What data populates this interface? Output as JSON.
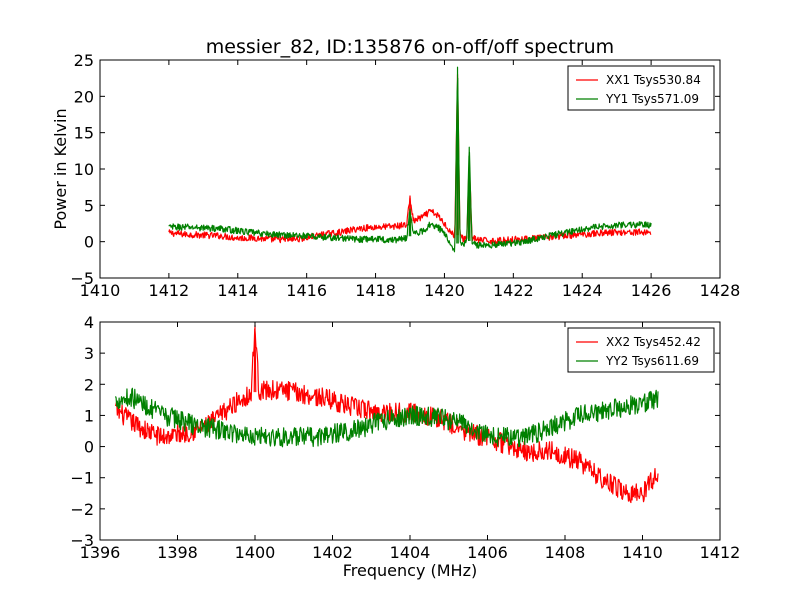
{
  "chart_data": [
    {
      "type": "line",
      "title": "messier_82, ID:135876 on-off/off spectrum",
      "xlabel": "",
      "ylabel": "Power in Kelvin",
      "xlim": [
        1410,
        1428
      ],
      "ylim": [
        -5,
        25
      ],
      "xticks": [
        1410,
        1412,
        1414,
        1416,
        1418,
        1420,
        1422,
        1424,
        1426,
        1428
      ],
      "xtick_labels": [
        "1410",
        "1412",
        "1414",
        "1416",
        "1418",
        "1420",
        "1422",
        "1424",
        "1426",
        "1428"
      ],
      "yticks": [
        -5,
        0,
        5,
        10,
        15,
        20,
        25
      ],
      "ytick_labels": [
        "−5",
        "0",
        "5",
        "10",
        "15",
        "20",
        "25"
      ],
      "grid": false,
      "legend_position": "upper-right",
      "series": [
        {
          "name": "XX1 Tsys530.84",
          "color": "#ff0000",
          "x": [
            1412,
            1412.5,
            1413,
            1413.5,
            1414,
            1414.5,
            1415,
            1415.5,
            1416,
            1416.5,
            1417,
            1417.5,
            1418,
            1418.5,
            1418.9,
            1419.0,
            1419.1,
            1419.4,
            1419.6,
            1419.8,
            1420.0,
            1420.2,
            1420.3,
            1420.38,
            1420.45,
            1420.55,
            1420.65,
            1420.72,
            1420.8,
            1421.0,
            1421.5,
            1422,
            1422.5,
            1423,
            1423.5,
            1424,
            1424.5,
            1425,
            1425.5,
            1426
          ],
          "y": [
            1.2,
            1.0,
            0.9,
            0.8,
            0.5,
            0.5,
            0.3,
            0.3,
            0.5,
            1.0,
            1.3,
            1.8,
            2.0,
            2.1,
            2.3,
            6.0,
            2.8,
            3.5,
            4.2,
            3.6,
            2.5,
            1.2,
            0.8,
            23.0,
            1.0,
            0.3,
            0.6,
            11.5,
            0.5,
            0.2,
            0.1,
            0.3,
            0.4,
            0.6,
            0.8,
            1.0,
            1.2,
            1.3,
            1.3,
            1.3
          ]
        },
        {
          "name": "YY1 Tsys571.09",
          "color": "#008000",
          "x": [
            1412,
            1412.5,
            1413,
            1413.5,
            1414,
            1414.5,
            1415,
            1415.5,
            1416,
            1416.5,
            1417,
            1417.5,
            1418,
            1418.5,
            1418.9,
            1419.0,
            1419.1,
            1419.4,
            1419.6,
            1419.8,
            1420.0,
            1420.2,
            1420.3,
            1420.38,
            1420.45,
            1420.55,
            1420.65,
            1420.72,
            1420.8,
            1421.0,
            1421.5,
            1422,
            1422.5,
            1423,
            1423.5,
            1424,
            1424.5,
            1425,
            1425.5,
            1426
          ],
          "y": [
            2.0,
            2.0,
            1.9,
            1.8,
            1.5,
            1.2,
            1.0,
            0.9,
            0.8,
            0.6,
            0.5,
            0.3,
            0.4,
            0.2,
            0.5,
            4.5,
            1.0,
            1.5,
            2.5,
            2.0,
            1.2,
            -0.5,
            -1.0,
            24.0,
            0.5,
            -0.8,
            0.5,
            13.0,
            -0.3,
            -0.5,
            -0.4,
            -0.2,
            0.2,
            0.8,
            1.2,
            1.8,
            2.0,
            2.3,
            2.3,
            2.3
          ]
        }
      ]
    },
    {
      "type": "line",
      "title": "",
      "xlabel": "Frequency (MHz)",
      "ylabel": "",
      "xlim": [
        1396,
        1412
      ],
      "ylim": [
        -3,
        4
      ],
      "xticks": [
        1396,
        1398,
        1400,
        1402,
        1404,
        1406,
        1408,
        1410,
        1412
      ],
      "xtick_labels": [
        "1396",
        "1398",
        "1400",
        "1402",
        "1404",
        "1406",
        "1408",
        "1410",
        "1412"
      ],
      "yticks": [
        -3,
        -2,
        -1,
        0,
        1,
        2,
        3,
        4
      ],
      "ytick_labels": [
        "−3",
        "−2",
        "−1",
        "0",
        "1",
        "2",
        "3",
        "4"
      ],
      "grid": false,
      "legend_position": "upper-right",
      "series": [
        {
          "name": "XX2 Tsys452.42",
          "color": "#ff0000",
          "x": [
            1396.4,
            1396.8,
            1397.2,
            1397.6,
            1398.0,
            1398.4,
            1398.8,
            1399.2,
            1399.6,
            1399.9,
            1400.0,
            1400.1,
            1400.4,
            1400.8,
            1401.2,
            1401.6,
            1402.0,
            1402.4,
            1402.8,
            1403.2,
            1403.6,
            1404.0,
            1404.4,
            1404.8,
            1405.2,
            1405.6,
            1406.0,
            1406.4,
            1406.8,
            1407.2,
            1407.6,
            1408.0,
            1408.4,
            1408.8,
            1409.2,
            1409.6,
            1410.0,
            1410.4
          ],
          "y": [
            1.2,
            0.8,
            0.5,
            0.3,
            0.4,
            0.5,
            0.7,
            1.1,
            1.5,
            1.7,
            3.9,
            1.8,
            1.8,
            1.8,
            1.7,
            1.6,
            1.5,
            1.3,
            1.2,
            1.1,
            1.1,
            1.1,
            1.0,
            0.9,
            0.6,
            0.4,
            0.3,
            0.1,
            -0.1,
            -0.2,
            -0.1,
            -0.3,
            -0.5,
            -0.9,
            -1.2,
            -1.5,
            -1.5,
            -0.8
          ]
        },
        {
          "name": "YY2 Tsys611.69",
          "color": "#008000",
          "x": [
            1396.4,
            1396.8,
            1397.2,
            1397.6,
            1398.0,
            1398.4,
            1398.8,
            1399.2,
            1399.6,
            1399.9,
            1400.0,
            1400.1,
            1400.4,
            1400.8,
            1401.2,
            1401.6,
            1402.0,
            1402.4,
            1402.8,
            1403.2,
            1403.6,
            1404.0,
            1404.4,
            1404.8,
            1405.2,
            1405.6,
            1406.0,
            1406.4,
            1406.8,
            1407.2,
            1407.6,
            1408.0,
            1408.4,
            1408.8,
            1409.2,
            1409.6,
            1410.0,
            1410.4
          ],
          "y": [
            1.5,
            1.6,
            1.3,
            1.0,
            0.9,
            0.7,
            0.6,
            0.5,
            0.4,
            0.4,
            0.3,
            0.4,
            0.3,
            0.3,
            0.3,
            0.3,
            0.4,
            0.5,
            0.6,
            0.8,
            0.9,
            1.0,
            1.0,
            0.9,
            0.8,
            0.6,
            0.4,
            0.3,
            0.3,
            0.4,
            0.6,
            0.8,
            1.0,
            1.1,
            1.2,
            1.3,
            1.4,
            1.5
          ]
        }
      ]
    }
  ]
}
